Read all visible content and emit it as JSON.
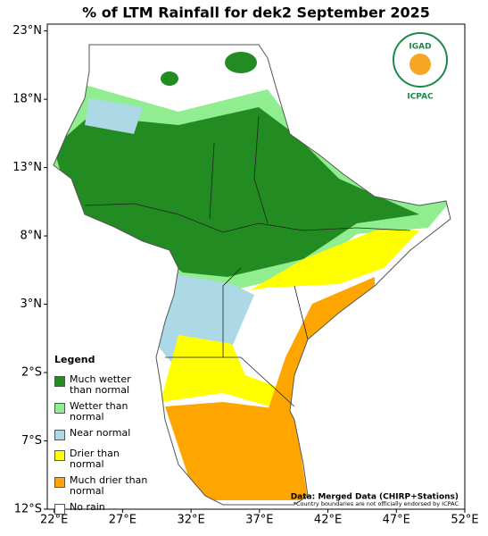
{
  "title": "% of LTM Rainfall for dek2 September 2025",
  "map": {
    "lonlim": [
      21.5,
      52
    ],
    "latlim": [
      -12,
      23.5
    ],
    "lon_ticks": [
      {
        "value": 22,
        "label": "22°E"
      },
      {
        "value": 27,
        "label": "27°E"
      },
      {
        "value": 32,
        "label": "32°E"
      },
      {
        "value": 37,
        "label": "37°E"
      },
      {
        "value": 42,
        "label": "42°E"
      },
      {
        "value": 47,
        "label": "47°E"
      },
      {
        "value": 52,
        "label": "52°E"
      }
    ],
    "lat_ticks": [
      {
        "value": 23,
        "label": "23°N"
      },
      {
        "value": 18,
        "label": "18°N"
      },
      {
        "value": 13,
        "label": "13°N"
      },
      {
        "value": 8,
        "label": "8°N"
      },
      {
        "value": 3,
        "label": "3°N"
      },
      {
        "value": -2,
        "label": "2°S"
      },
      {
        "value": -7,
        "label": "7°S"
      },
      {
        "value": -12,
        "label": "12°S"
      }
    ]
  },
  "legend": {
    "title": "Legend",
    "items": [
      {
        "label": "Much wetter than normal",
        "color": "#228b22"
      },
      {
        "label": "Wetter than normal",
        "color": "#90ee90"
      },
      {
        "label": "Near normal",
        "color": "#add8e6"
      },
      {
        "label": "Drier than normal",
        "color": "#ffff00"
      },
      {
        "label": "Much drier than normal",
        "color": "#ffa500"
      },
      {
        "label": "No rain",
        "color": "#ffffff"
      }
    ]
  },
  "logo": {
    "top": "IGAD",
    "bottom": "ICPAC"
  },
  "source": "Data: Merged Data (CHIRP+Stations)",
  "disclaimer": "*Country boundaries are not officially endorsed by ICPAC"
}
